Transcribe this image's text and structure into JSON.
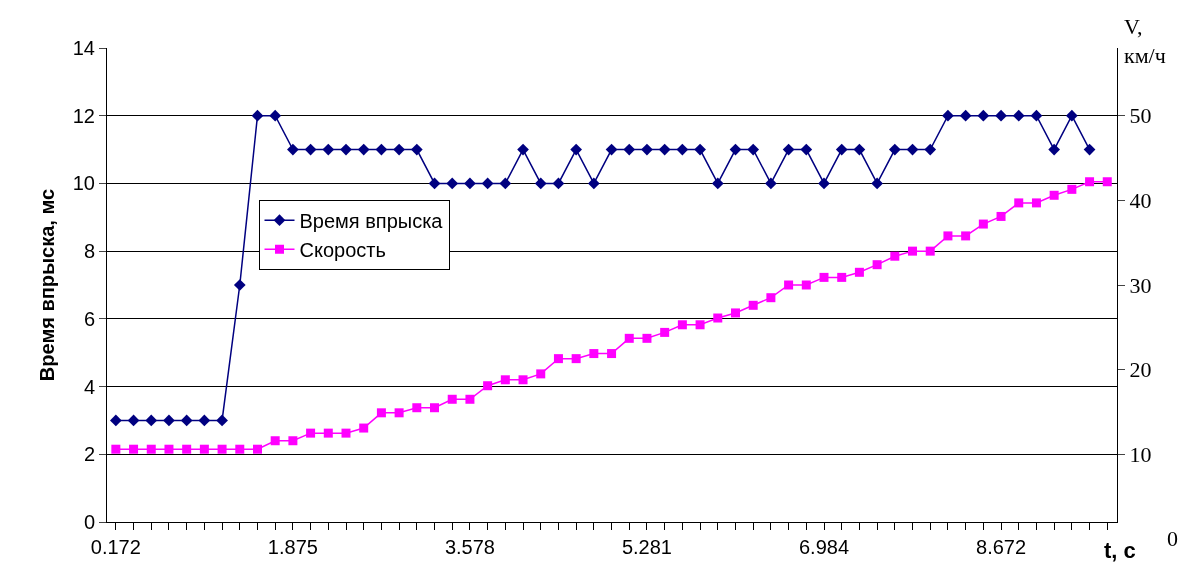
{
  "chart_data": {
    "type": "line",
    "xlabel": "t, c",
    "ylabel": "Время впрыска, мс",
    "y2label": "V,\nкм/ч",
    "annotations": [
      "0"
    ],
    "categories": [
      "0.172",
      null,
      null,
      null,
      null,
      null,
      null,
      null,
      null,
      null,
      "1.875",
      null,
      null,
      null,
      null,
      null,
      null,
      null,
      null,
      null,
      "3.578",
      null,
      null,
      null,
      null,
      null,
      null,
      null,
      null,
      null,
      "5.281",
      null,
      null,
      null,
      null,
      null,
      null,
      null,
      null,
      null,
      "6.984",
      null,
      null,
      null,
      null,
      null,
      null,
      null,
      null,
      null,
      "8.672",
      null,
      null,
      null,
      null,
      null,
      null
    ],
    "series": [
      {
        "name": "Время впрыска",
        "color": "#000080",
        "marker": "diamond",
        "values": [
          3,
          3,
          3,
          3,
          3,
          3,
          3,
          7,
          12,
          12,
          11,
          11,
          11,
          11,
          11,
          11,
          11,
          11,
          10,
          10,
          10,
          10,
          10,
          11,
          10,
          10,
          11,
          10,
          11,
          11,
          11,
          11,
          11,
          11,
          10,
          11,
          11,
          10,
          11,
          11,
          10,
          11,
          11,
          10,
          11,
          11,
          11,
          12,
          12,
          12,
          12,
          12,
          12,
          11,
          12,
          11,
          null
        ]
      },
      {
        "name": "Скорость",
        "color": "#ff00ff",
        "marker": "square",
        "axis": "y2",
        "values": [
          10.6,
          10.6,
          10.6,
          10.6,
          10.6,
          10.6,
          10.6,
          10.6,
          10.6,
          11.6,
          11.6,
          12.5,
          12.5,
          12.5,
          13.1,
          14.9,
          14.9,
          15.5,
          15.5,
          16.5,
          16.5,
          18.1,
          18.8,
          18.8,
          19.5,
          21.3,
          21.3,
          21.9,
          21.9,
          23.7,
          23.7,
          24.4,
          25.3,
          25.3,
          26.1,
          26.7,
          27.6,
          28.5,
          30.0,
          30.0,
          30.9,
          30.9,
          31.5,
          32.4,
          33.4,
          34.0,
          34.0,
          35.8,
          35.8,
          37.2,
          38.1,
          39.7,
          39.7,
          40.6,
          41.3,
          42.2,
          42.2
        ]
      }
    ],
    "ylim": [
      0,
      14
    ],
    "yticks": [
      0,
      2,
      4,
      6,
      8,
      10,
      12,
      14
    ],
    "y2lim": [
      2,
      58
    ],
    "y2ticks": [
      10,
      20,
      30,
      40,
      50
    ],
    "grid": "y",
    "legend": "left",
    "line_style": "solid"
  }
}
